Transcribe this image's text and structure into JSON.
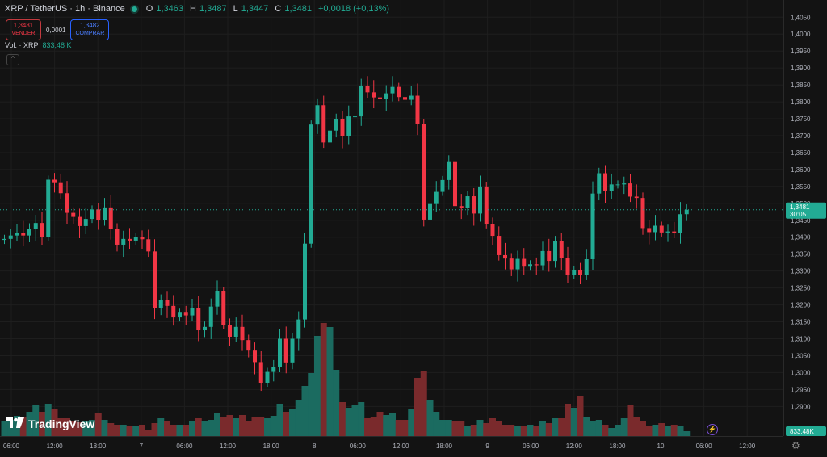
{
  "header": {
    "symbol": "XRP / TetherUS · 1h · Binance",
    "open_label": "O",
    "open": "1,3463",
    "high_label": "H",
    "high": "1,3487",
    "low_label": "L",
    "low": "1,3447",
    "close_label": "C",
    "close": "1,3481",
    "change": "+0,0018 (+0,13%)"
  },
  "trade": {
    "sell_price": "1,3481",
    "sell_label": "VENDER",
    "spread": "0,0001",
    "buy_price": "1,3482",
    "buy_label": "COMPRAR"
  },
  "volume_legend": {
    "label": "Vol. · XRP",
    "value": "833,48 K"
  },
  "collapse_icon": "chevron-up",
  "branding": {
    "name": "TradingView"
  },
  "price_scale": {
    "labels": [
      "1,4050",
      "1,4000",
      "1,3950",
      "1,3900",
      "1,3850",
      "1,3800",
      "1,3750",
      "1,3700",
      "1,3650",
      "1,3600",
      "1,3550",
      "1,3500",
      "1,3450",
      "1,3400",
      "1,3350",
      "1,3300",
      "1,3250",
      "1,3200",
      "1,3150",
      "1,3100",
      "1,3050",
      "1,3000",
      "1,2950",
      "1,2900"
    ],
    "current_price": "1,3481",
    "countdown": "30:05",
    "volume_badge": "833,48K"
  },
  "time_scale": {
    "labels": [
      "06:00",
      "12:00",
      "18:00",
      "7",
      "06:00",
      "12:00",
      "18:00",
      "8",
      "06:00",
      "12:00",
      "18:00",
      "9",
      "06:00",
      "12:00",
      "18:00",
      "10",
      "06:00",
      "12:00"
    ]
  },
  "colors": {
    "up": "#22ab94",
    "down": "#f23645",
    "up_vol": "#1b6b60",
    "down_vol": "#7a2a2c",
    "background": "#131313"
  },
  "chart_data": {
    "type": "candlestick",
    "ylim": [
      1.2865,
      1.4065
    ],
    "closes": [
      1.3395,
      1.3405,
      1.3412,
      1.3405,
      1.3425,
      1.3442,
      1.34,
      1.357,
      1.356,
      1.353,
      1.3472,
      1.346,
      1.3433,
      1.3454,
      1.3482,
      1.345,
      1.3488,
      1.3425,
      1.3378,
      1.3395,
      1.339,
      1.34,
      1.3394,
      1.3358,
      1.319,
      1.3215,
      1.3197,
      1.3163,
      1.3177,
      1.3169,
      1.319,
      1.3125,
      1.3135,
      1.3195,
      1.324,
      1.314,
      1.3106,
      1.3135,
      1.3096,
      1.3065,
      1.3031,
      1.297,
      1.3002,
      1.3017,
      1.31,
      1.303,
      1.31,
      1.3157,
      1.3381,
      1.3733,
      1.379,
      1.368,
      1.3715,
      1.3749,
      1.3699,
      1.3757,
      1.3757,
      1.3848,
      1.3828,
      1.3813,
      1.3808,
      1.3825,
      1.3844,
      1.3814,
      1.3806,
      1.3818,
      1.3734,
      1.3452,
      1.3498,
      1.3534,
      1.3569,
      1.3622,
      1.3492,
      1.3486,
      1.3521,
      1.347,
      1.355,
      1.3438,
      1.3404,
      1.3347,
      1.3337,
      1.3305,
      1.3336,
      1.3313,
      1.332,
      1.3317,
      1.3359,
      1.333,
      1.3388,
      1.3339,
      1.3289,
      1.3304,
      1.3289,
      1.3335,
      1.3529,
      1.3589,
      1.3536,
      1.3556,
      1.3556,
      1.3559,
      1.352,
      1.3516,
      1.3427,
      1.3415,
      1.3434,
      1.3414,
      1.3417,
      1.3413,
      1.3468,
      1.3481
    ]
  }
}
